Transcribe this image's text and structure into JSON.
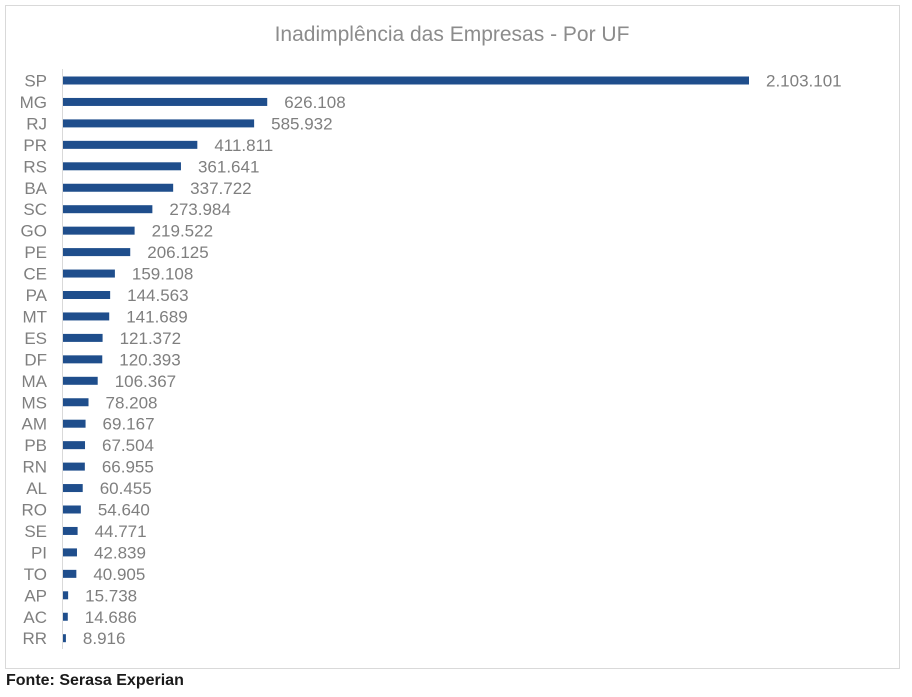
{
  "chart_data": {
    "type": "bar",
    "orientation": "horizontal",
    "title": "Inadimplência das Empresas - Por UF",
    "xlabel": "",
    "ylabel": "",
    "categories": [
      "SP",
      "MG",
      "RJ",
      "PR",
      "RS",
      "BA",
      "SC",
      "GO",
      "PE",
      "CE",
      "PA",
      "MT",
      "ES",
      "DF",
      "MA",
      "MS",
      "AM",
      "PB",
      "RN",
      "AL",
      "RO",
      "SE",
      "PI",
      "TO",
      "AP",
      "AC",
      "RR"
    ],
    "values": [
      2103101,
      626108,
      585932,
      411811,
      361641,
      337722,
      273984,
      219522,
      206125,
      159108,
      144563,
      141689,
      121372,
      120393,
      106367,
      78208,
      69167,
      67504,
      66955,
      60455,
      54640,
      44771,
      42839,
      40905,
      15738,
      14686,
      8916
    ],
    "value_labels": [
      "2.103.101",
      "626.108",
      "585.932",
      "411.811",
      "361.641",
      "337.722",
      "273.984",
      "219.522",
      "206.125",
      "159.108",
      "144.563",
      "141.689",
      "121.372",
      "120.393",
      "106.367",
      "78.208",
      "69.167",
      "67.504",
      "66.955",
      "60.455",
      "54.640",
      "44.771",
      "42.839",
      "40.905",
      "15.738",
      "14.686",
      "8.916"
    ],
    "xlim": [
      0,
      2103101
    ],
    "grid": false,
    "legend": "none",
    "bar_color": "#1f4e8c",
    "label_color": "#7f7f7f"
  },
  "source": "Fonte: Serasa Experian"
}
